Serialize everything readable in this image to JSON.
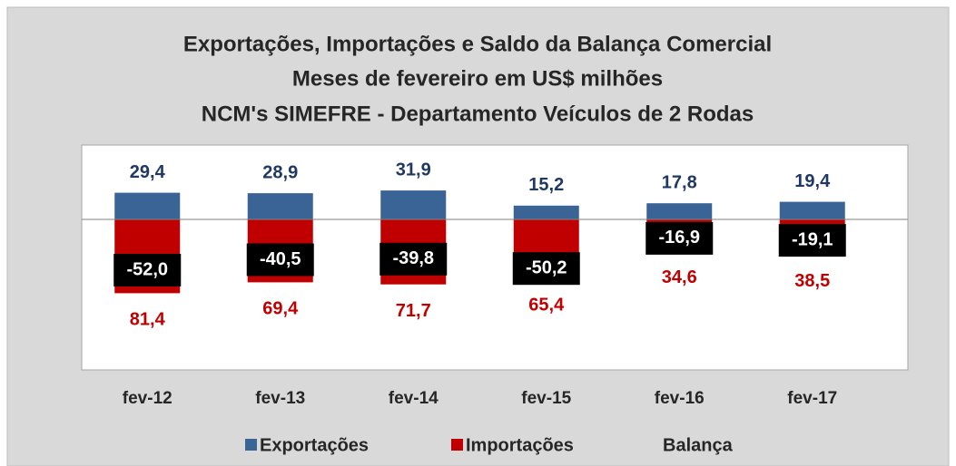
{
  "chart_data": {
    "type": "bar",
    "title": "Exportações, Importações e Saldo da Balança Comercial",
    "subtitle": [
      "Meses de fevereiro em US$ milhões",
      "NCM's SIMEFRE - Departamento Veículos de 2 Rodas"
    ],
    "categories": [
      "fev-12",
      "fev-13",
      "fev-14",
      "fev-15",
      "fev-16",
      "fev-17"
    ],
    "series": [
      {
        "name": "Exportações",
        "color": "#3a6496",
        "values": [
          29.4,
          28.9,
          31.9,
          15.2,
          17.8,
          19.4
        ],
        "value_labels": [
          "29,4",
          "28,9",
          "31,9",
          "15,2",
          "17,8",
          "19,4"
        ]
      },
      {
        "name": "Importações",
        "color": "#c00000",
        "values": [
          -81.4,
          -69.4,
          -71.7,
          -65.4,
          -34.6,
          -38.5
        ],
        "value_labels": [
          "81,4",
          "69,4",
          "71,7",
          "65,4",
          "34,6",
          "38,5"
        ]
      },
      {
        "name": "Balança",
        "color": "#000000",
        "values": [
          -52.0,
          -40.5,
          -39.8,
          -50.2,
          -16.9,
          -19.1
        ],
        "value_labels": [
          "-52,0",
          "-40,5",
          "-39,8",
          "-50,2",
          "-16,9",
          "-19,1"
        ]
      }
    ],
    "ylim": [
      -166,
      82
    ]
  }
}
